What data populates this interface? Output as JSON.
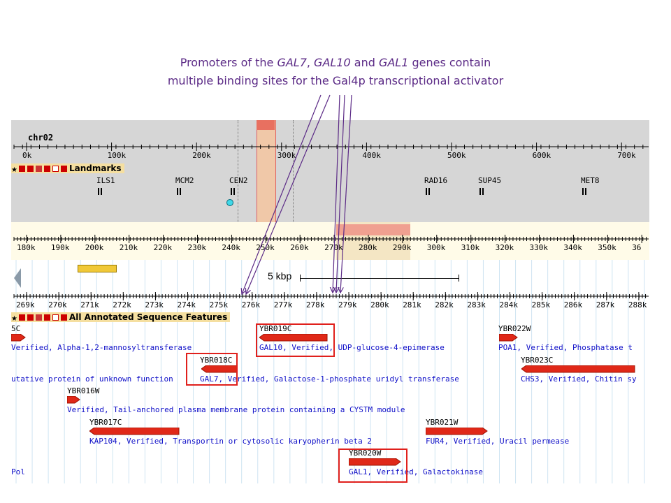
{
  "caption": {
    "line1_pre": "Promoters of the ",
    "gal7": "GAL7",
    "sep1": ", ",
    "gal10": "GAL10",
    "sep2": " and ",
    "gal1": "GAL1",
    "line1_post": " genes contain",
    "line2": "multiple binding sites for the  Gal4p transcriptional activator"
  },
  "overview": {
    "chromosome": "chr02",
    "ticks": [
      "0k",
      "100k",
      "200k",
      "300k",
      "400k",
      "500k",
      "600k",
      "700k"
    ],
    "track_title": "Landmarks",
    "landmarks": [
      "ILS1",
      "MCM2",
      "CEN2",
      "RAD16",
      "SUP45",
      "MET8"
    ]
  },
  "region": {
    "ticks": [
      "180k",
      "190k",
      "200k",
      "210k",
      "220k",
      "230k",
      "240k",
      "250k",
      "260k",
      "270k",
      "280k",
      "290k",
      "300k",
      "310k",
      "320k",
      "330k",
      "340k",
      "350k",
      "36"
    ]
  },
  "detail": {
    "scale_label": "5 kbp",
    "ticks": [
      "269k",
      "270k",
      "271k",
      "272k",
      "273k",
      "274k",
      "275k",
      "276k",
      "277k",
      "278k",
      "279k",
      "280k",
      "281k",
      "282k",
      "283k",
      "284k",
      "285k",
      "286k",
      "287k",
      "288k"
    ],
    "track_title": "All Annotated Sequence Features",
    "features": [
      {
        "name": "5C",
        "desc": "Verified, Alpha-1,2-mannosyltransferase"
      },
      {
        "name": "YBR019C",
        "desc": "GAL10, Verified, UDP-glucose-4-epimerase"
      },
      {
        "name": "YBR022W",
        "desc": "POA1, Verified, Phosphatase t"
      },
      {
        "name": "YBR018C",
        "desc": "GAL7, Verified, Galactose-1-phosphate uridyl transferase"
      },
      {
        "name": "",
        "desc": "utative protein of unknown function"
      },
      {
        "name": "YBR023C",
        "desc": "CHS3, Verified, Chitin sy"
      },
      {
        "name": "YBR016W",
        "desc": "Verified, Tail-anchored plasma membrane protein containing a CYSTM module"
      },
      {
        "name": "YBR017C",
        "desc": "KAP104, Verified, Transportin or cytosolic karyopherin beta 2"
      },
      {
        "name": "YBR021W",
        "desc": "FUR4, Verified, Uracil permease"
      },
      {
        "name": "YBR020W",
        "desc": "GAL1, Verified, Galactokinase"
      },
      {
        "name": "",
        "desc": "Pol"
      }
    ]
  }
}
